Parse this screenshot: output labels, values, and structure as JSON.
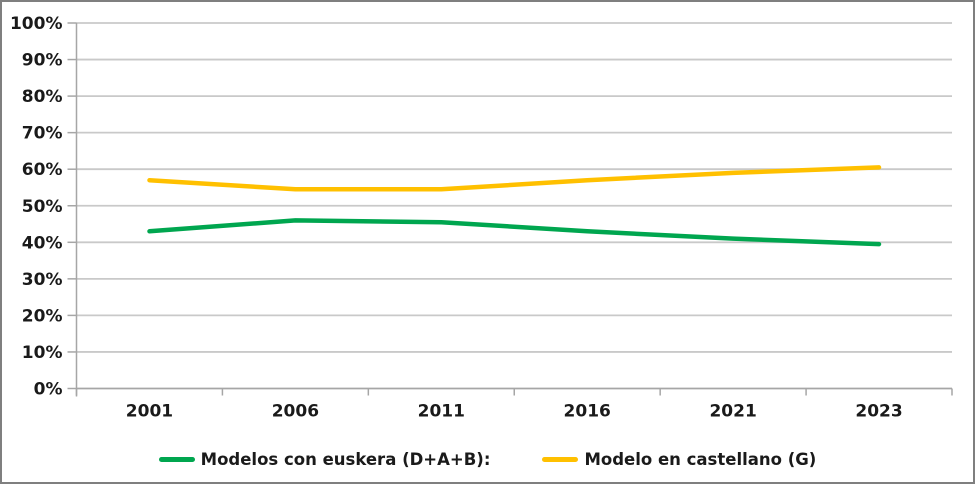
{
  "chart_data": {
    "type": "line",
    "title": "",
    "xlabel": "",
    "ylabel": "",
    "categories": [
      "2001",
      "2006",
      "2011",
      "2016",
      "2021",
      "2023"
    ],
    "series": [
      {
        "name": "Modelos con euskera (D+A+B):",
        "color": "#00A64F",
        "values": [
          43,
          46,
          45.5,
          43,
          41,
          39.5
        ]
      },
      {
        "name": "Modelo en castellano (G)",
        "color": "#FFC000",
        "values": [
          57,
          54.5,
          54.5,
          57,
          59,
          60.5
        ]
      }
    ],
    "ylim": [
      0,
      100
    ],
    "ytick_step": 10,
    "ytick_labels": [
      "0%",
      "10%",
      "20%",
      "30%",
      "40%",
      "50%",
      "60%",
      "70%",
      "80%",
      "90%",
      "100%"
    ],
    "grid": true,
    "legend_position": "bottom"
  },
  "colors": {
    "gridline": "#C9C9C9",
    "axis": "#A6A6A6",
    "tick_label": "#1A1A1A",
    "frame_border": "#7F7F7F",
    "background": "#FFFFFF"
  }
}
